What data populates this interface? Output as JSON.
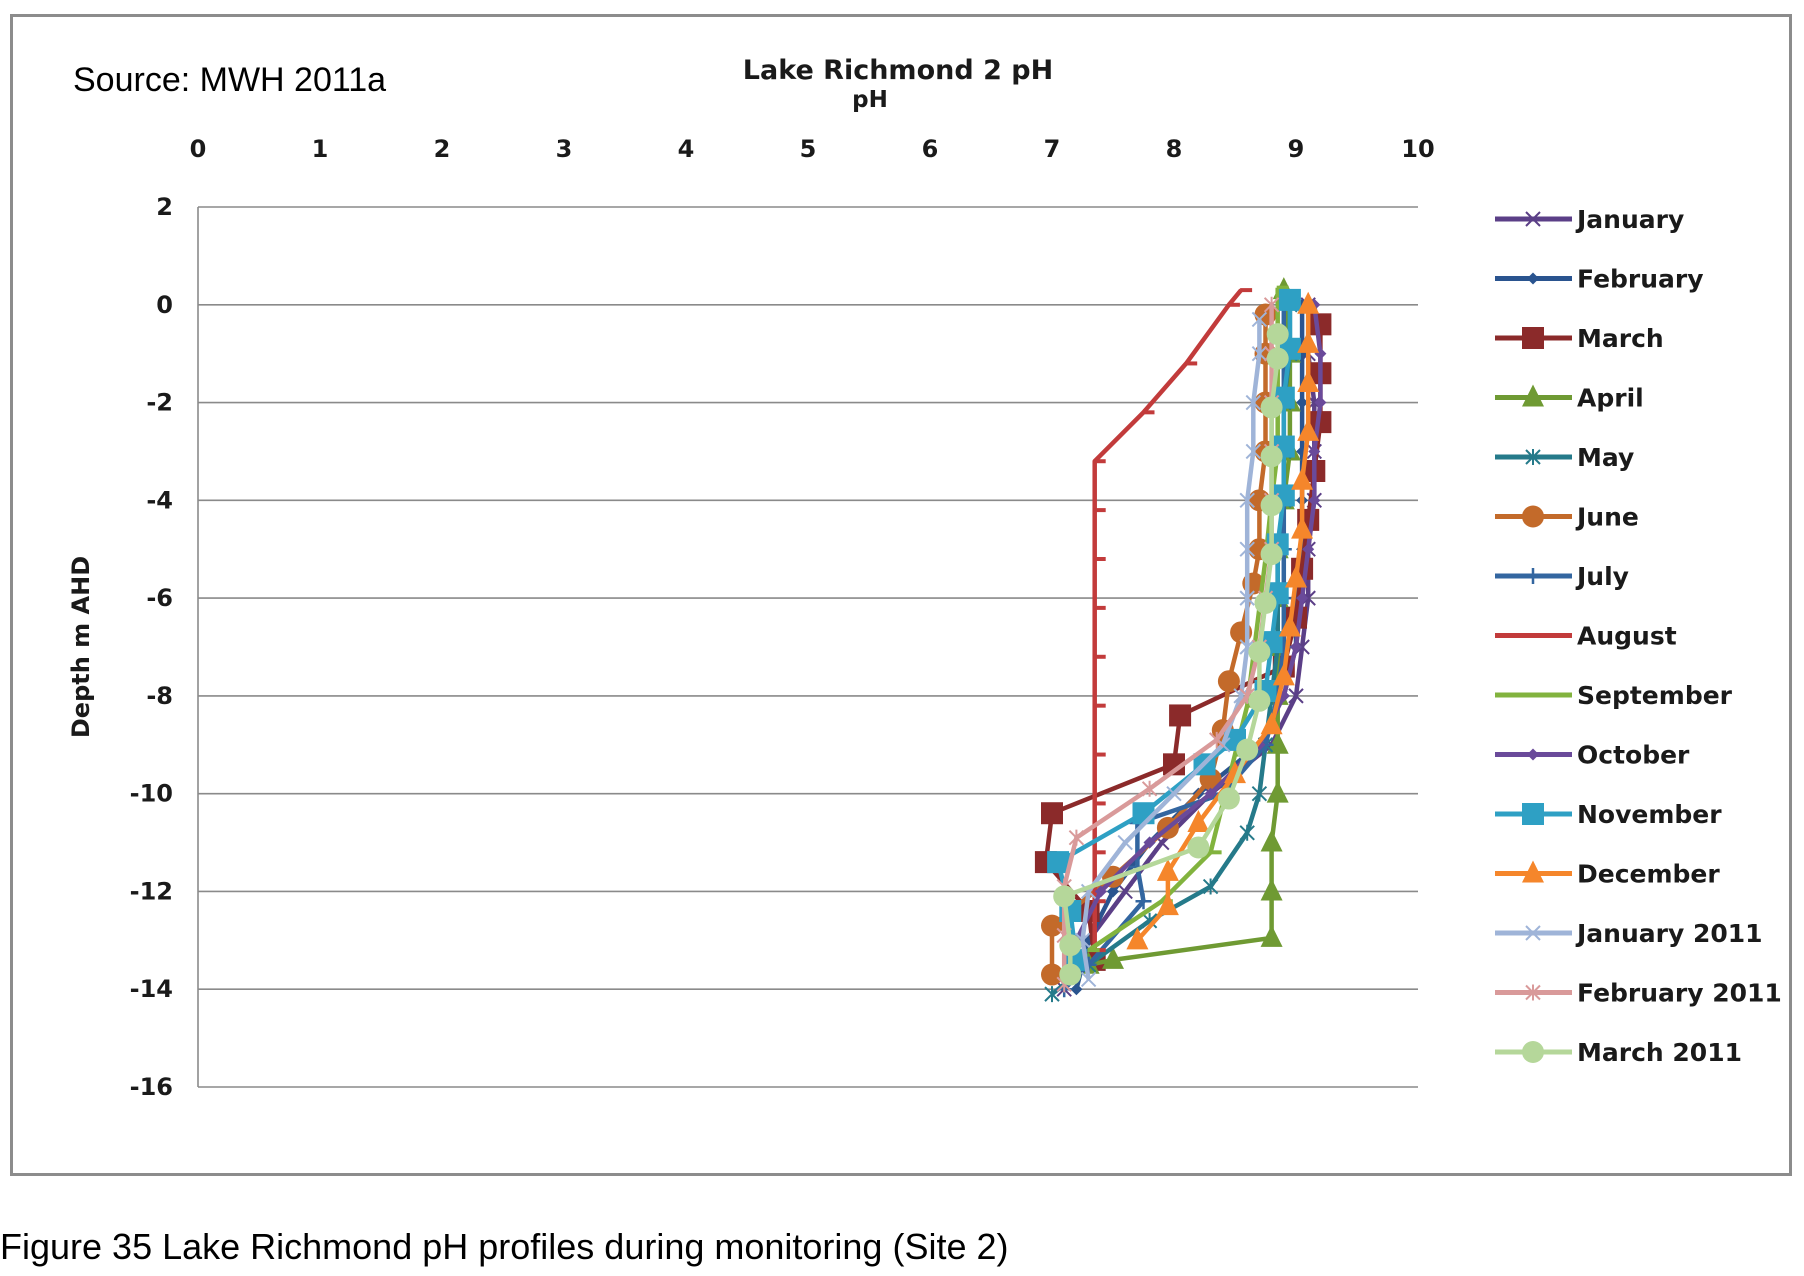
{
  "source_note": "Source: MWH 2011a",
  "caption": "Figure 35  Lake Richmond pH profiles during monitoring (Site 2)",
  "chart_data": {
    "type": "line",
    "title": "Lake Richmond 2 pH",
    "xlabel": "pH",
    "ylabel": "Depth m AHD",
    "xlim": [
      0,
      10
    ],
    "ylim": [
      -16,
      2
    ],
    "x_ticks": [
      0,
      1,
      2,
      3,
      4,
      5,
      6,
      7,
      8,
      9,
      10
    ],
    "y_ticks": [
      2,
      0,
      -2,
      -4,
      -6,
      -8,
      -10,
      -12,
      -14,
      -16
    ],
    "x_axis_position": "top",
    "grid": "horizontal",
    "legend_position": "right",
    "series": [
      {
        "name": "January",
        "color": "#5b3f87",
        "marker": "x",
        "points": [
          [
            9.1,
            0
          ],
          [
            9.1,
            -1
          ],
          [
            9.15,
            -2
          ],
          [
            9.15,
            -3
          ],
          [
            9.15,
            -4
          ],
          [
            9.1,
            -5
          ],
          [
            9.1,
            -6
          ],
          [
            9.05,
            -7
          ],
          [
            9.0,
            -8
          ],
          [
            8.8,
            -9
          ],
          [
            8.3,
            -10
          ],
          [
            7.9,
            -11
          ],
          [
            7.6,
            -12
          ],
          [
            7.3,
            -13
          ],
          [
            7.1,
            -14
          ]
        ]
      },
      {
        "name": "February",
        "color": "#2a548f",
        "marker": "diamond",
        "points": [
          [
            9.05,
            0
          ],
          [
            9.05,
            -1
          ],
          [
            9.05,
            -2
          ],
          [
            9.05,
            -3
          ],
          [
            9.05,
            -4
          ],
          [
            9.05,
            -5
          ],
          [
            9.0,
            -6
          ],
          [
            9.0,
            -7
          ],
          [
            8.9,
            -8
          ],
          [
            8.7,
            -9
          ],
          [
            8.2,
            -10
          ],
          [
            7.8,
            -11
          ],
          [
            7.5,
            -12
          ],
          [
            7.3,
            -13
          ],
          [
            7.2,
            -14
          ]
        ]
      },
      {
        "name": "March",
        "color": "#8b2a2a",
        "marker": "square",
        "points": [
          [
            9.2,
            -0.4
          ],
          [
            9.2,
            -1.4
          ],
          [
            9.2,
            -2.4
          ],
          [
            9.15,
            -3.4
          ],
          [
            9.1,
            -4.4
          ],
          [
            9.05,
            -5.4
          ],
          [
            9.0,
            -6.4
          ],
          [
            8.9,
            -7.4
          ],
          [
            8.05,
            -8.4
          ],
          [
            8.0,
            -9.4
          ],
          [
            7.0,
            -10.4
          ],
          [
            6.95,
            -11.4
          ],
          [
            7.3,
            -12.4
          ],
          [
            7.35,
            -13.4
          ]
        ]
      },
      {
        "name": "April",
        "color": "#6f9a33",
        "marker": "triangle",
        "points": [
          [
            8.9,
            0.3
          ],
          [
            8.95,
            -1
          ],
          [
            8.95,
            -2
          ],
          [
            8.95,
            -3
          ],
          [
            8.9,
            -4
          ],
          [
            8.85,
            -5
          ],
          [
            8.85,
            -6
          ],
          [
            8.85,
            -7
          ],
          [
            8.85,
            -8
          ],
          [
            8.85,
            -9
          ],
          [
            8.85,
            -10
          ],
          [
            8.8,
            -11
          ],
          [
            8.8,
            -12
          ],
          [
            8.8,
            -12.95
          ],
          [
            7.5,
            -13.4
          ],
          [
            7.3,
            -13.5
          ]
        ]
      },
      {
        "name": "May",
        "color": "#257a8a",
        "marker": "star",
        "points": [
          [
            8.95,
            0
          ],
          [
            8.95,
            -1
          ],
          [
            8.9,
            -2
          ],
          [
            8.9,
            -3
          ],
          [
            8.9,
            -4
          ],
          [
            8.85,
            -5
          ],
          [
            8.85,
            -6
          ],
          [
            8.85,
            -7
          ],
          [
            8.8,
            -8
          ],
          [
            8.75,
            -9
          ],
          [
            8.7,
            -10
          ],
          [
            8.6,
            -10.8
          ],
          [
            8.3,
            -11.9
          ],
          [
            7.8,
            -12.6
          ],
          [
            7.3,
            -13.5
          ],
          [
            7.0,
            -14.1
          ]
        ]
      },
      {
        "name": "June",
        "color": "#c36a2a",
        "marker": "circle",
        "points": [
          [
            8.75,
            -0.2
          ],
          [
            8.75,
            -1
          ],
          [
            8.75,
            -2
          ],
          [
            8.75,
            -3
          ],
          [
            8.7,
            -4
          ],
          [
            8.7,
            -5
          ],
          [
            8.65,
            -5.7
          ],
          [
            8.55,
            -6.7
          ],
          [
            8.45,
            -7.7
          ],
          [
            8.4,
            -8.7
          ],
          [
            8.3,
            -9.7
          ],
          [
            7.95,
            -10.7
          ],
          [
            7.5,
            -11.7
          ],
          [
            7.0,
            -12.7
          ],
          [
            7.0,
            -13.7
          ]
        ]
      },
      {
        "name": "July",
        "color": "#3366a0",
        "marker": "plus",
        "points": [
          [
            8.9,
            0
          ],
          [
            8.9,
            -1
          ],
          [
            8.9,
            -2
          ],
          [
            8.9,
            -3
          ],
          [
            8.9,
            -4
          ],
          [
            8.9,
            -5
          ],
          [
            8.9,
            -6
          ],
          [
            8.9,
            -7
          ],
          [
            8.85,
            -8
          ],
          [
            8.75,
            -9
          ],
          [
            8.4,
            -10
          ],
          [
            7.7,
            -10.6
          ],
          [
            7.7,
            -11.5
          ],
          [
            7.75,
            -12.2
          ],
          [
            7.3,
            -13.5
          ],
          [
            7.1,
            -14
          ]
        ]
      },
      {
        "name": "August",
        "color": "#c23b3b",
        "marker": "dash",
        "points": [
          [
            8.55,
            0.3
          ],
          [
            8.45,
            0
          ],
          [
            8.1,
            -1.2
          ],
          [
            7.75,
            -2.2
          ],
          [
            7.35,
            -3.2
          ],
          [
            7.35,
            -4.2
          ],
          [
            7.35,
            -5.2
          ],
          [
            7.35,
            -6.2
          ],
          [
            7.35,
            -7.2
          ],
          [
            7.35,
            -8.2
          ],
          [
            7.35,
            -9.2
          ],
          [
            7.35,
            -10.2
          ],
          [
            7.35,
            -11.2
          ],
          [
            7.35,
            -12.2
          ],
          [
            7.35,
            -13.2
          ]
        ]
      },
      {
        "name": "September",
        "color": "#82b33e",
        "marker": "dash",
        "points": [
          [
            8.85,
            0.35
          ],
          [
            8.85,
            -1
          ],
          [
            8.85,
            -2
          ],
          [
            8.85,
            -3
          ],
          [
            8.8,
            -4
          ],
          [
            8.75,
            -5.2
          ],
          [
            8.7,
            -6.2
          ],
          [
            8.65,
            -7.2
          ],
          [
            8.6,
            -8.2
          ],
          [
            8.5,
            -9.2
          ],
          [
            8.4,
            -10.2
          ],
          [
            8.3,
            -11.2
          ],
          [
            7.9,
            -12.2
          ],
          [
            7.3,
            -13.2
          ]
        ]
      },
      {
        "name": "October",
        "color": "#6a4a9a",
        "marker": "diamond",
        "points": [
          [
            9.15,
            0
          ],
          [
            9.2,
            -1
          ],
          [
            9.2,
            -2
          ],
          [
            9.15,
            -3
          ],
          [
            9.15,
            -4
          ],
          [
            9.1,
            -5
          ],
          [
            9.05,
            -6
          ],
          [
            9.0,
            -7
          ],
          [
            8.9,
            -8
          ],
          [
            8.7,
            -9
          ],
          [
            8.3,
            -10
          ],
          [
            7.8,
            -11
          ],
          [
            7.4,
            -12
          ],
          [
            7.2,
            -13
          ]
        ]
      },
      {
        "name": "November",
        "color": "#2ea0c4",
        "marker": "square",
        "points": [
          [
            8.95,
            0.1
          ],
          [
            8.95,
            -0.9
          ],
          [
            8.9,
            -1.9
          ],
          [
            8.9,
            -2.9
          ],
          [
            8.9,
            -3.9
          ],
          [
            8.85,
            -4.9
          ],
          [
            8.85,
            -5.9
          ],
          [
            8.8,
            -6.9
          ],
          [
            8.75,
            -7.9
          ],
          [
            8.5,
            -8.9
          ],
          [
            8.25,
            -9.4
          ],
          [
            7.75,
            -10.4
          ],
          [
            7.05,
            -11.4
          ],
          [
            7.15,
            -12.4
          ],
          [
            7.2,
            -13.4
          ]
        ]
      },
      {
        "name": "December",
        "color": "#f5862b",
        "marker": "triangle",
        "points": [
          [
            9.1,
            0
          ],
          [
            9.1,
            -0.8
          ],
          [
            9.1,
            -1.6
          ],
          [
            9.1,
            -2.6
          ],
          [
            9.05,
            -3.6
          ],
          [
            9.05,
            -4.6
          ],
          [
            9.0,
            -5.6
          ],
          [
            8.95,
            -6.6
          ],
          [
            8.9,
            -7.6
          ],
          [
            8.8,
            -8.6
          ],
          [
            8.5,
            -9.6
          ],
          [
            8.2,
            -10.6
          ],
          [
            7.95,
            -11.6
          ],
          [
            7.95,
            -12.3
          ],
          [
            7.7,
            -13.0
          ]
        ]
      },
      {
        "name": "January 2011",
        "color": "#9fb4d8",
        "marker": "x",
        "points": [
          [
            8.7,
            -0.3
          ],
          [
            8.7,
            -1
          ],
          [
            8.65,
            -2
          ],
          [
            8.65,
            -3
          ],
          [
            8.6,
            -4
          ],
          [
            8.6,
            -5
          ],
          [
            8.6,
            -6
          ],
          [
            8.6,
            -7
          ],
          [
            8.55,
            -8
          ],
          [
            8.4,
            -9
          ],
          [
            8.0,
            -10
          ],
          [
            7.6,
            -11
          ],
          [
            7.3,
            -12
          ],
          [
            7.25,
            -13
          ],
          [
            7.3,
            -13.8
          ]
        ]
      },
      {
        "name": "February 2011",
        "color": "#d99a9a",
        "marker": "star",
        "points": [
          [
            8.8,
            0
          ],
          [
            8.8,
            -1
          ],
          [
            8.8,
            -2
          ],
          [
            8.8,
            -3
          ],
          [
            8.8,
            -4
          ],
          [
            8.8,
            -5
          ],
          [
            8.75,
            -6
          ],
          [
            8.7,
            -7
          ],
          [
            8.6,
            -8
          ],
          [
            8.35,
            -8.9
          ],
          [
            7.8,
            -9.9
          ],
          [
            7.2,
            -10.9
          ],
          [
            7.1,
            -11.9
          ],
          [
            7.1,
            -12.9
          ],
          [
            7.1,
            -13.9
          ]
        ]
      },
      {
        "name": "March 2011",
        "color": "#b5d79a",
        "marker": "circle",
        "points": [
          [
            8.85,
            -0.6
          ],
          [
            8.85,
            -1.1
          ],
          [
            8.8,
            -2.1
          ],
          [
            8.8,
            -3.1
          ],
          [
            8.8,
            -4.1
          ],
          [
            8.8,
            -5.1
          ],
          [
            8.75,
            -6.1
          ],
          [
            8.7,
            -7.1
          ],
          [
            8.7,
            -8.1
          ],
          [
            8.6,
            -9.1
          ],
          [
            8.45,
            -10.1
          ],
          [
            8.2,
            -11.1
          ],
          [
            7.1,
            -12.1
          ],
          [
            7.15,
            -13.1
          ],
          [
            7.15,
            -13.7
          ]
        ]
      }
    ]
  }
}
